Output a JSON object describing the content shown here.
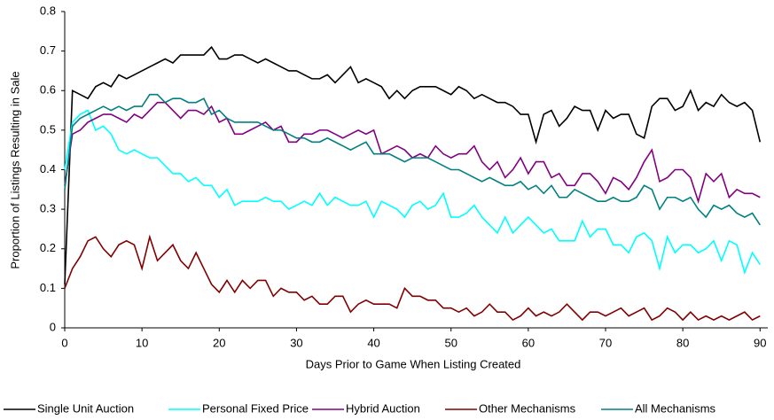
{
  "chart_data": {
    "type": "line",
    "x_label": "Days Prior to Game When Listing Created",
    "y_label": "Proportion of Listings Resulting in Sale",
    "x": [
      0,
      1,
      2,
      3,
      4,
      5,
      6,
      7,
      8,
      9,
      10,
      11,
      12,
      13,
      14,
      15,
      16,
      17,
      18,
      19,
      20,
      21,
      22,
      23,
      24,
      25,
      26,
      27,
      28,
      29,
      30,
      31,
      32,
      33,
      34,
      35,
      36,
      37,
      38,
      39,
      40,
      41,
      42,
      43,
      44,
      45,
      46,
      47,
      48,
      49,
      50,
      51,
      52,
      53,
      54,
      55,
      56,
      57,
      58,
      59,
      60,
      61,
      62,
      63,
      64,
      65,
      66,
      67,
      68,
      69,
      70,
      71,
      72,
      73,
      74,
      75,
      76,
      77,
      78,
      79,
      80,
      81,
      82,
      83,
      84,
      85,
      86,
      87,
      88,
      89,
      90
    ],
    "xlim": [
      0,
      91
    ],
    "xticks": [
      0,
      10,
      20,
      30,
      40,
      50,
      60,
      70,
      80,
      90
    ],
    "ylim": [
      0,
      0.8
    ],
    "yticks": [
      0,
      0.1,
      0.2,
      0.3,
      0.4,
      0.5,
      0.6,
      0.7,
      0.8
    ],
    "legend": "bottom",
    "series": [
      {
        "name": "Single Unit Auction",
        "color": "#000000",
        "values": [
          0.11,
          0.6,
          0.59,
          0.58,
          0.61,
          0.62,
          0.61,
          0.64,
          0.63,
          0.64,
          0.65,
          0.66,
          0.67,
          0.68,
          0.67,
          0.69,
          0.69,
          0.69,
          0.69,
          0.71,
          0.68,
          0.68,
          0.69,
          0.69,
          0.68,
          0.67,
          0.68,
          0.67,
          0.66,
          0.65,
          0.65,
          0.64,
          0.63,
          0.63,
          0.64,
          0.62,
          0.64,
          0.66,
          0.62,
          0.63,
          0.62,
          0.61,
          0.58,
          0.6,
          0.58,
          0.6,
          0.61,
          0.61,
          0.61,
          0.6,
          0.59,
          0.61,
          0.6,
          0.58,
          0.59,
          0.58,
          0.57,
          0.57,
          0.56,
          0.54,
          0.54,
          0.47,
          0.54,
          0.55,
          0.51,
          0.53,
          0.56,
          0.55,
          0.55,
          0.5,
          0.55,
          0.53,
          0.54,
          0.54,
          0.49,
          0.48,
          0.56,
          0.58,
          0.58,
          0.55,
          0.56,
          0.6,
          0.55,
          0.57,
          0.56,
          0.59,
          0.57,
          0.56,
          0.57,
          0.55,
          0.47
        ]
      },
      {
        "name": "Personal Fixed Price",
        "color": "#00ffff",
        "values": [
          0.4,
          0.52,
          0.54,
          0.55,
          0.5,
          0.51,
          0.49,
          0.45,
          0.44,
          0.45,
          0.44,
          0.43,
          0.43,
          0.41,
          0.39,
          0.39,
          0.37,
          0.38,
          0.36,
          0.36,
          0.33,
          0.35,
          0.31,
          0.32,
          0.32,
          0.32,
          0.33,
          0.32,
          0.32,
          0.3,
          0.31,
          0.32,
          0.31,
          0.34,
          0.31,
          0.33,
          0.32,
          0.31,
          0.31,
          0.32,
          0.28,
          0.32,
          0.31,
          0.3,
          0.28,
          0.31,
          0.32,
          0.3,
          0.31,
          0.34,
          0.28,
          0.28,
          0.29,
          0.31,
          0.28,
          0.26,
          0.24,
          0.28,
          0.24,
          0.26,
          0.28,
          0.26,
          0.24,
          0.25,
          0.22,
          0.22,
          0.22,
          0.27,
          0.23,
          0.25,
          0.25,
          0.21,
          0.21,
          0.19,
          0.23,
          0.24,
          0.22,
          0.15,
          0.23,
          0.19,
          0.21,
          0.21,
          0.19,
          0.2,
          0.22,
          0.17,
          0.22,
          0.21,
          0.14,
          0.19,
          0.16
        ]
      },
      {
        "name": "Hybrid Auction",
        "color": "#800080",
        "values": [
          0.36,
          0.49,
          0.5,
          0.52,
          0.53,
          0.54,
          0.54,
          0.53,
          0.52,
          0.54,
          0.53,
          0.55,
          0.57,
          0.57,
          0.55,
          0.53,
          0.55,
          0.55,
          0.54,
          0.56,
          0.52,
          0.53,
          0.49,
          0.49,
          0.5,
          0.51,
          0.52,
          0.5,
          0.51,
          0.47,
          0.47,
          0.49,
          0.49,
          0.5,
          0.5,
          0.49,
          0.48,
          0.49,
          0.5,
          0.49,
          0.5,
          0.44,
          0.45,
          0.46,
          0.45,
          0.43,
          0.44,
          0.43,
          0.46,
          0.44,
          0.43,
          0.44,
          0.44,
          0.46,
          0.42,
          0.4,
          0.42,
          0.38,
          0.4,
          0.43,
          0.39,
          0.42,
          0.42,
          0.38,
          0.39,
          0.36,
          0.36,
          0.39,
          0.39,
          0.37,
          0.34,
          0.38,
          0.37,
          0.35,
          0.38,
          0.42,
          0.45,
          0.37,
          0.38,
          0.4,
          0.4,
          0.38,
          0.32,
          0.39,
          0.37,
          0.39,
          0.33,
          0.35,
          0.34,
          0.34,
          0.33
        ]
      },
      {
        "name": "Other Mechanisms",
        "color": "#800000",
        "values": [
          0.1,
          0.15,
          0.18,
          0.22,
          0.23,
          0.2,
          0.18,
          0.21,
          0.22,
          0.21,
          0.15,
          0.23,
          0.17,
          0.19,
          0.21,
          0.17,
          0.15,
          0.19,
          0.15,
          0.11,
          0.09,
          0.12,
          0.09,
          0.12,
          0.1,
          0.12,
          0.12,
          0.08,
          0.1,
          0.09,
          0.09,
          0.07,
          0.08,
          0.06,
          0.06,
          0.08,
          0.08,
          0.04,
          0.06,
          0.07,
          0.06,
          0.06,
          0.06,
          0.05,
          0.1,
          0.08,
          0.08,
          0.07,
          0.07,
          0.05,
          0.05,
          0.04,
          0.05,
          0.03,
          0.04,
          0.06,
          0.04,
          0.04,
          0.02,
          0.03,
          0.05,
          0.03,
          0.04,
          0.03,
          0.04,
          0.06,
          0.04,
          0.02,
          0.04,
          0.04,
          0.03,
          0.04,
          0.05,
          0.03,
          0.04,
          0.05,
          0.02,
          0.03,
          0.05,
          0.04,
          0.02,
          0.04,
          0.02,
          0.03,
          0.02,
          0.03,
          0.02,
          0.03,
          0.04,
          0.02,
          0.03
        ]
      },
      {
        "name": "All Mechanisms",
        "color": "#008080",
        "values": [
          0.35,
          0.51,
          0.53,
          0.54,
          0.55,
          0.56,
          0.55,
          0.56,
          0.55,
          0.56,
          0.56,
          0.59,
          0.59,
          0.57,
          0.58,
          0.58,
          0.57,
          0.57,
          0.58,
          0.54,
          0.55,
          0.53,
          0.52,
          0.52,
          0.52,
          0.52,
          0.51,
          0.5,
          0.5,
          0.49,
          0.48,
          0.48,
          0.47,
          0.47,
          0.48,
          0.47,
          0.46,
          0.45,
          0.46,
          0.47,
          0.44,
          0.44,
          0.44,
          0.43,
          0.42,
          0.43,
          0.43,
          0.43,
          0.42,
          0.41,
          0.4,
          0.4,
          0.39,
          0.38,
          0.37,
          0.38,
          0.37,
          0.36,
          0.36,
          0.37,
          0.35,
          0.36,
          0.34,
          0.36,
          0.33,
          0.33,
          0.35,
          0.34,
          0.33,
          0.32,
          0.32,
          0.33,
          0.32,
          0.32,
          0.33,
          0.36,
          0.35,
          0.3,
          0.33,
          0.33,
          0.32,
          0.33,
          0.3,
          0.28,
          0.31,
          0.3,
          0.31,
          0.29,
          0.28,
          0.29,
          0.26
        ]
      }
    ]
  }
}
